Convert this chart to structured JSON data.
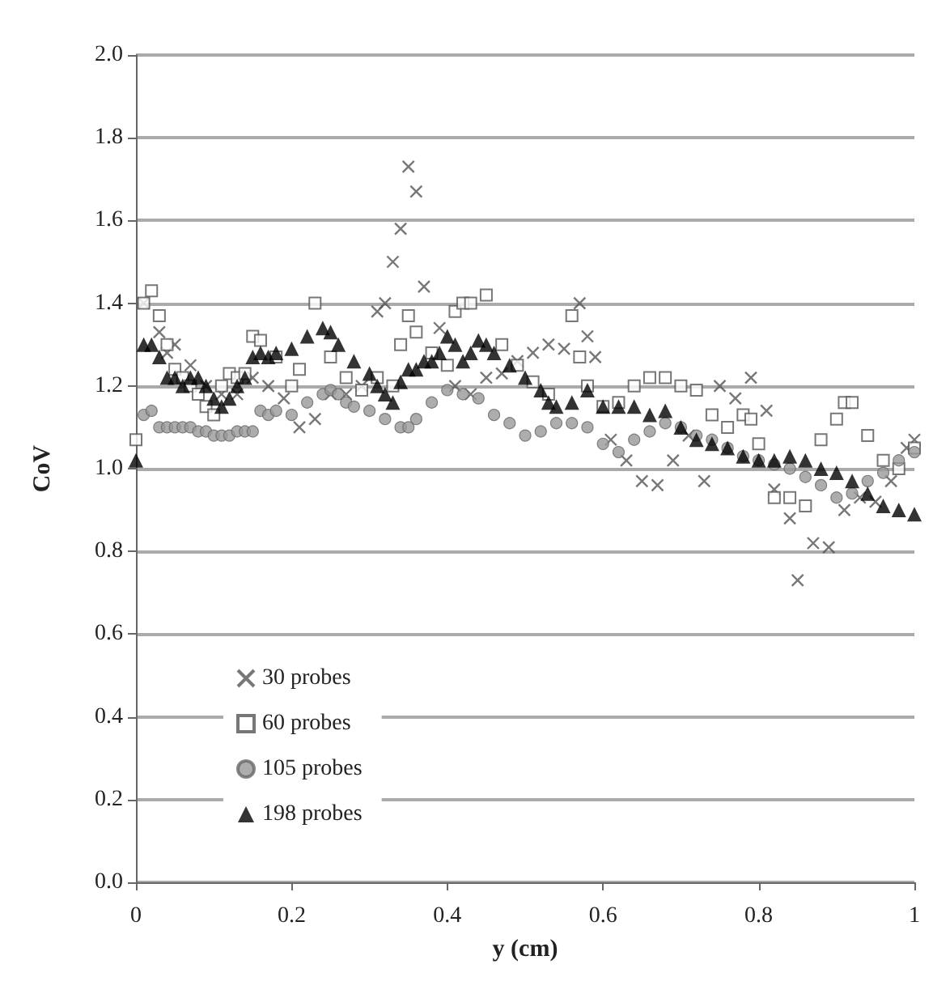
{
  "chart_data": {
    "type": "scatter",
    "xlabel": "y (cm)",
    "ylabel": "CoV",
    "xlim": [
      0,
      1
    ],
    "xticks": [
      0,
      0.2,
      0.4,
      0.6,
      0.8,
      1
    ],
    "ylim": [
      0,
      2
    ],
    "yticks": [
      {
        "value": 0,
        "label": "0.0"
      },
      0.2,
      0.4,
      0.6,
      0.8,
      {
        "value": 1,
        "label": "1.0"
      },
      1.2,
      1.4,
      1.6,
      1.8,
      {
        "value": 2,
        "label": "2.0"
      }
    ],
    "grid": "y",
    "legend": "bottom left",
    "series": [
      {
        "name": "30 probes",
        "color": "#555555",
        "marker": "cross",
        "x": [
          0.01,
          0.03,
          0.04,
          0.05,
          0.07,
          0.09,
          0.11,
          0.13,
          0.15,
          0.17,
          0.19,
          0.21,
          0.23,
          0.25,
          0.27,
          0.29,
          0.31,
          0.32,
          0.33,
          0.34,
          0.35,
          0.36,
          0.37,
          0.39,
          0.41,
          0.43,
          0.45,
          0.47,
          0.49,
          0.51,
          0.53,
          0.55,
          0.57,
          0.58,
          0.59,
          0.61,
          0.63,
          0.65,
          0.67,
          0.69,
          0.71,
          0.73,
          0.75,
          0.77,
          0.79,
          0.81,
          0.82,
          0.84,
          0.85,
          0.87,
          0.89,
          0.91,
          0.93,
          0.95,
          0.97,
          0.99,
          1.0
        ],
        "values": [
          1.4,
          1.33,
          1.28,
          1.3,
          1.25,
          1.2,
          1.18,
          1.18,
          1.22,
          1.2,
          1.17,
          1.1,
          1.12,
          1.18,
          1.18,
          1.2,
          1.38,
          1.4,
          1.5,
          1.58,
          1.73,
          1.67,
          1.44,
          1.34,
          1.2,
          1.18,
          1.22,
          1.23,
          1.26,
          1.28,
          1.3,
          1.29,
          1.4,
          1.32,
          1.27,
          1.07,
          1.02,
          0.97,
          0.96,
          1.02,
          1.08,
          0.97,
          1.2,
          1.17,
          1.22,
          1.14,
          0.95,
          0.88,
          0.73,
          0.82,
          0.81,
          0.9,
          0.93,
          0.92,
          0.97,
          1.05,
          1.07
        ]
      },
      {
        "name": "60 probes",
        "color": "#555555",
        "marker": "square",
        "x": [
          0,
          0.01,
          0.02,
          0.03,
          0.04,
          0.05,
          0.06,
          0.07,
          0.08,
          0.09,
          0.1,
          0.11,
          0.12,
          0.13,
          0.14,
          0.15,
          0.16,
          0.18,
          0.2,
          0.21,
          0.23,
          0.25,
          0.27,
          0.29,
          0.31,
          0.33,
          0.34,
          0.35,
          0.36,
          0.38,
          0.4,
          0.41,
          0.42,
          0.43,
          0.45,
          0.47,
          0.49,
          0.51,
          0.53,
          0.56,
          0.57,
          0.58,
          0.6,
          0.62,
          0.64,
          0.66,
          0.68,
          0.7,
          0.72,
          0.74,
          0.76,
          0.78,
          0.79,
          0.8,
          0.82,
          0.84,
          0.86,
          0.88,
          0.9,
          0.91,
          0.92,
          0.94,
          0.96,
          0.98,
          1.0
        ],
        "values": [
          1.07,
          1.4,
          1.43,
          1.37,
          1.3,
          1.24,
          1.22,
          1.2,
          1.18,
          1.15,
          1.13,
          1.2,
          1.23,
          1.22,
          1.23,
          1.32,
          1.31,
          1.27,
          1.2,
          1.24,
          1.4,
          1.27,
          1.22,
          1.19,
          1.22,
          1.2,
          1.3,
          1.37,
          1.33,
          1.28,
          1.25,
          1.38,
          1.4,
          1.4,
          1.42,
          1.3,
          1.25,
          1.21,
          1.18,
          1.37,
          1.27,
          1.2,
          1.15,
          1.16,
          1.2,
          1.22,
          1.22,
          1.2,
          1.19,
          1.13,
          1.1,
          1.13,
          1.12,
          1.06,
          0.93,
          0.93,
          0.91,
          1.07,
          1.12,
          1.16,
          1.16,
          1.08,
          1.02,
          1.0,
          1.05
        ]
      },
      {
        "name": "105 probes",
        "color": "#999999",
        "marker": "circle",
        "x": [
          0.01,
          0.02,
          0.03,
          0.04,
          0.05,
          0.06,
          0.07,
          0.08,
          0.09,
          0.1,
          0.11,
          0.12,
          0.13,
          0.14,
          0.15,
          0.16,
          0.17,
          0.18,
          0.2,
          0.22,
          0.24,
          0.25,
          0.26,
          0.27,
          0.28,
          0.3,
          0.32,
          0.34,
          0.35,
          0.36,
          0.38,
          0.4,
          0.42,
          0.44,
          0.46,
          0.48,
          0.5,
          0.52,
          0.54,
          0.56,
          0.58,
          0.6,
          0.62,
          0.64,
          0.66,
          0.68,
          0.7,
          0.72,
          0.74,
          0.76,
          0.78,
          0.8,
          0.82,
          0.84,
          0.86,
          0.88,
          0.9,
          0.92,
          0.94,
          0.96,
          0.98,
          1.0
        ],
        "values": [
          1.13,
          1.14,
          1.1,
          1.1,
          1.1,
          1.1,
          1.1,
          1.09,
          1.09,
          1.08,
          1.08,
          1.08,
          1.09,
          1.09,
          1.09,
          1.14,
          1.13,
          1.14,
          1.13,
          1.16,
          1.18,
          1.19,
          1.18,
          1.16,
          1.15,
          1.14,
          1.12,
          1.1,
          1.1,
          1.12,
          1.16,
          1.19,
          1.18,
          1.17,
          1.13,
          1.11,
          1.08,
          1.09,
          1.11,
          1.11,
          1.1,
          1.06,
          1.04,
          1.07,
          1.09,
          1.11,
          1.1,
          1.08,
          1.07,
          1.05,
          1.03,
          1.02,
          1.01,
          1.0,
          0.98,
          0.96,
          0.93,
          0.94,
          0.97,
          0.99,
          1.02,
          1.04
        ]
      },
      {
        "name": "198 probes",
        "color": "#000000",
        "marker": "triangle",
        "x": [
          0,
          0.01,
          0.02,
          0.03,
          0.04,
          0.05,
          0.06,
          0.07,
          0.08,
          0.09,
          0.1,
          0.11,
          0.12,
          0.13,
          0.14,
          0.15,
          0.16,
          0.17,
          0.18,
          0.2,
          0.22,
          0.24,
          0.25,
          0.26,
          0.28,
          0.3,
          0.31,
          0.32,
          0.33,
          0.34,
          0.35,
          0.36,
          0.37,
          0.38,
          0.39,
          0.4,
          0.41,
          0.42,
          0.43,
          0.44,
          0.45,
          0.46,
          0.48,
          0.5,
          0.52,
          0.53,
          0.54,
          0.56,
          0.58,
          0.6,
          0.62,
          0.64,
          0.66,
          0.68,
          0.7,
          0.72,
          0.74,
          0.76,
          0.78,
          0.8,
          0.82,
          0.84,
          0.86,
          0.88,
          0.9,
          0.92,
          0.94,
          0.96,
          0.98,
          1.0
        ],
        "values": [
          1.02,
          1.3,
          1.3,
          1.27,
          1.22,
          1.22,
          1.2,
          1.22,
          1.22,
          1.2,
          1.17,
          1.15,
          1.17,
          1.2,
          1.22,
          1.27,
          1.28,
          1.27,
          1.28,
          1.29,
          1.32,
          1.34,
          1.33,
          1.3,
          1.26,
          1.23,
          1.2,
          1.18,
          1.16,
          1.21,
          1.24,
          1.24,
          1.26,
          1.26,
          1.28,
          1.32,
          1.3,
          1.26,
          1.28,
          1.31,
          1.3,
          1.28,
          1.25,
          1.22,
          1.19,
          1.16,
          1.15,
          1.16,
          1.19,
          1.15,
          1.15,
          1.15,
          1.13,
          1.14,
          1.1,
          1.07,
          1.06,
          1.05,
          1.03,
          1.02,
          1.02,
          1.03,
          1.02,
          1.0,
          0.99,
          0.97,
          0.94,
          0.91,
          0.9,
          0.89
        ]
      }
    ]
  }
}
